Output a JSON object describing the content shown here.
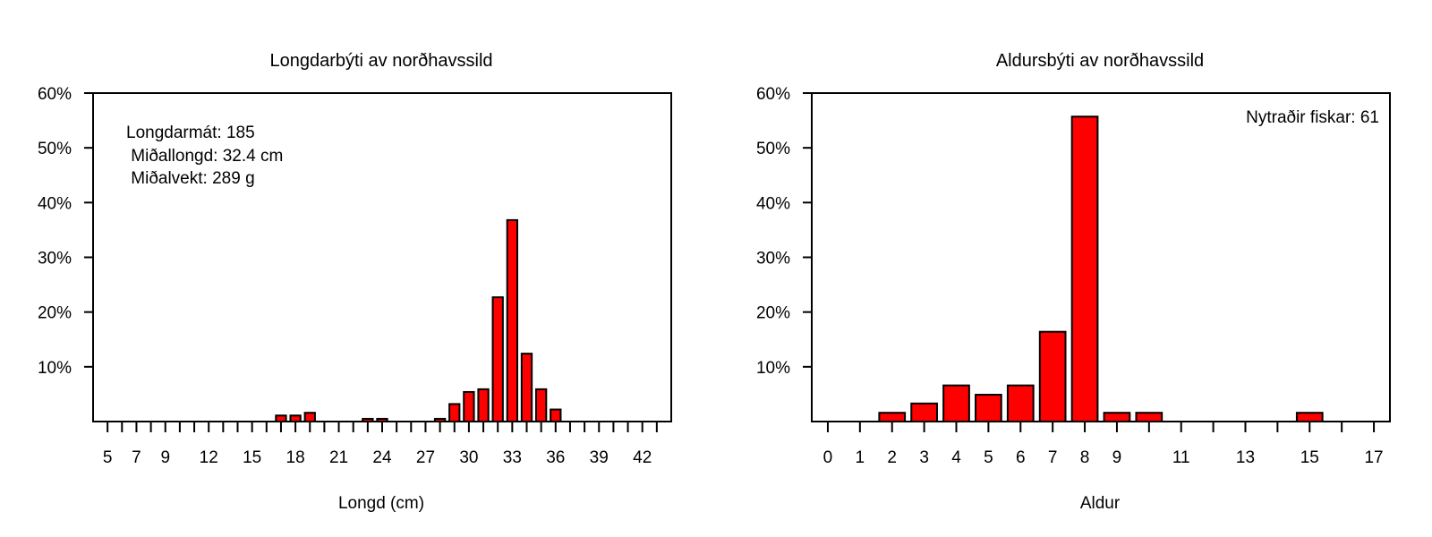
{
  "accent_color": "#ff0000",
  "chart_data": [
    {
      "type": "bar",
      "title": "Longdarbýti av norðhavssild",
      "xlabel": "Longd (cm)",
      "ylabel": "",
      "xlim": [
        4,
        44
      ],
      "ylim": [
        0,
        0.6
      ],
      "yticks": [
        0.1,
        0.2,
        0.3,
        0.4,
        0.5,
        0.6
      ],
      "ytick_labels": [
        "10%",
        "20%",
        "30%",
        "40%",
        "50%",
        "60%"
      ],
      "xticks_minor": [
        5,
        6,
        7,
        8,
        9,
        10,
        11,
        12,
        13,
        14,
        15,
        16,
        17,
        18,
        19,
        20,
        21,
        22,
        23,
        24,
        25,
        26,
        27,
        28,
        29,
        30,
        31,
        32,
        33,
        34,
        35,
        36,
        37,
        38,
        39,
        40,
        41,
        42,
        43
      ],
      "xtick_labels": [
        "5",
        "7",
        "9",
        "12",
        "15",
        "18",
        "21",
        "24",
        "27",
        "30",
        "33",
        "36",
        "39",
        "42"
      ],
      "xtick_label_values": [
        5,
        7,
        9,
        12,
        15,
        18,
        21,
        24,
        27,
        30,
        33,
        36,
        39,
        42
      ],
      "categories": [
        17,
        18,
        19,
        23,
        24,
        28,
        29,
        30,
        31,
        32,
        33,
        34,
        35,
        36
      ],
      "values": [
        0.011,
        0.011,
        0.016,
        0.005,
        0.005,
        0.005,
        0.032,
        0.054,
        0.059,
        0.227,
        0.368,
        0.124,
        0.059,
        0.022
      ],
      "annotations": [
        "Longdarmát: 185",
        " Miðallongd: 32.4 cm",
        " Miðalvekt: 289 g"
      ],
      "bar_color": "#ff0000"
    },
    {
      "type": "bar",
      "title": "Aldursbýti av norðhavssild",
      "xlabel": "Aldur",
      "ylabel": "",
      "xlim": [
        -0.5,
        17.5
      ],
      "ylim": [
        0,
        0.6
      ],
      "yticks": [
        0.1,
        0.2,
        0.3,
        0.4,
        0.5,
        0.6
      ],
      "ytick_labels": [
        "10%",
        "20%",
        "30%",
        "40%",
        "50%",
        "60%"
      ],
      "xticks_minor": [
        0,
        1,
        2,
        3,
        4,
        5,
        6,
        7,
        8,
        9,
        10,
        11,
        12,
        13,
        14,
        15,
        16,
        17
      ],
      "xtick_labels": [
        "0",
        "1",
        "2",
        "3",
        "4",
        "5",
        "6",
        "7",
        "8",
        "9",
        "11",
        "13",
        "15",
        "17"
      ],
      "xtick_label_values": [
        0,
        1,
        2,
        3,
        4,
        5,
        6,
        7,
        8,
        9,
        11,
        13,
        15,
        17
      ],
      "categories": [
        2,
        3,
        4,
        5,
        6,
        7,
        8,
        9,
        10,
        15
      ],
      "values": [
        0.016,
        0.033,
        0.066,
        0.049,
        0.066,
        0.164,
        0.557,
        0.016,
        0.016,
        0.016
      ],
      "annotations": [
        "Nytraðir fiskar: 61"
      ],
      "bar_color": "#ff0000"
    }
  ]
}
